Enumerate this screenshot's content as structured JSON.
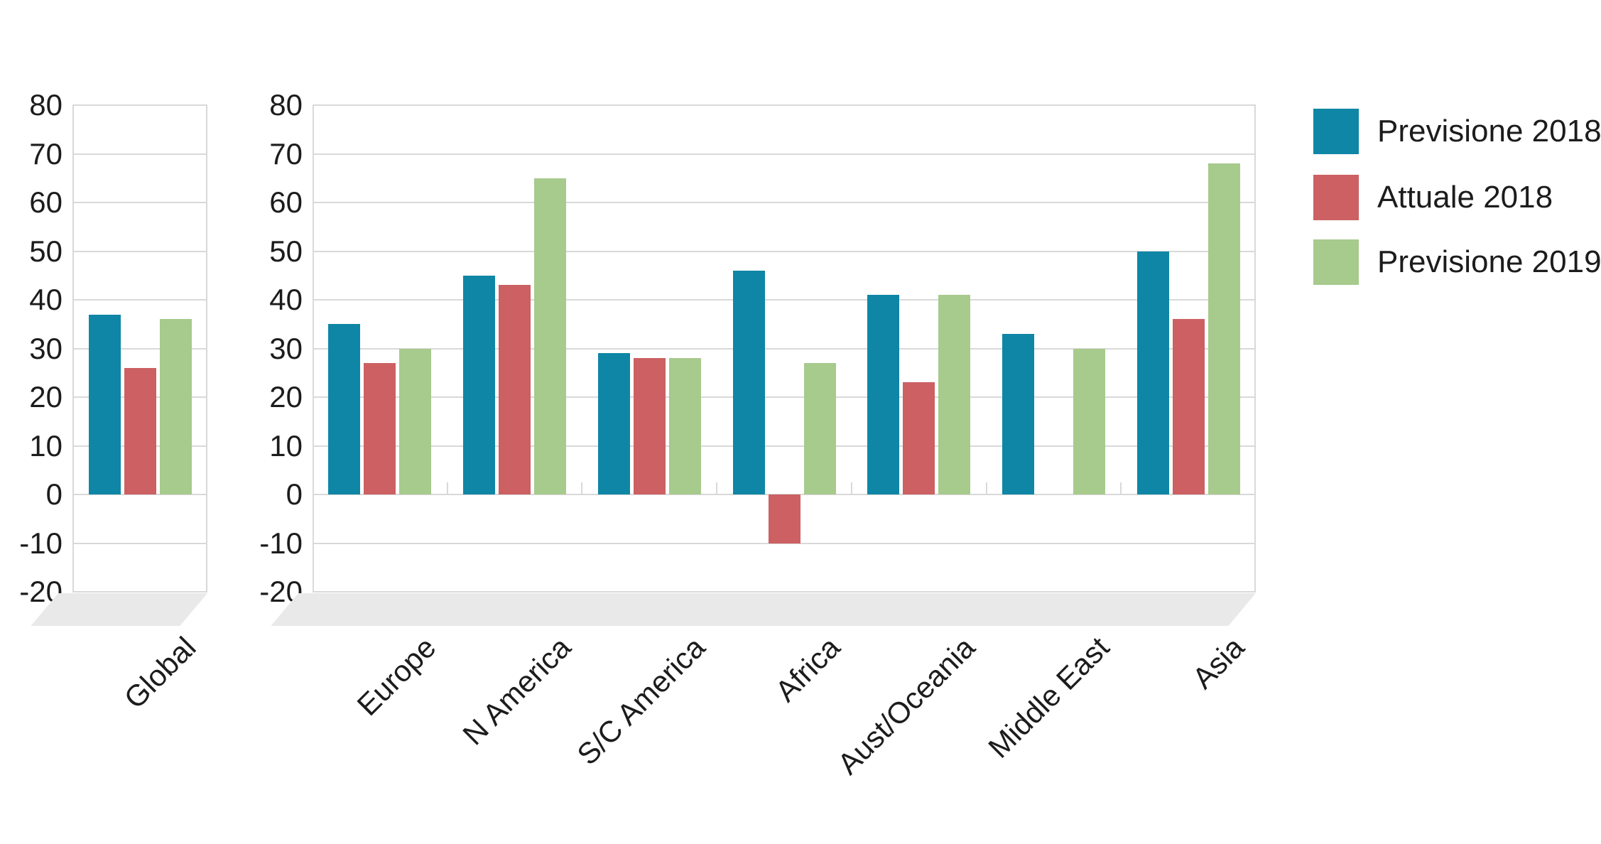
{
  "legend": {
    "items": [
      {
        "label": "Previsione 2018",
        "color": "#0f86a5"
      },
      {
        "label": "Attuale 2018",
        "color": "#cc6063"
      },
      {
        "label": "Previsione 2019",
        "color": "#a7ca8d"
      }
    ]
  },
  "y_axis": {
    "min": -20,
    "max": 80,
    "step": 10
  },
  "chart_data": {
    "type": "bar",
    "title": "",
    "xlabel": "",
    "ylabel": "",
    "ylim": [
      -20,
      80
    ],
    "grid": true,
    "legend_position": "right",
    "series_names": [
      "Previsione 2018",
      "Attuale 2018",
      "Previsione 2019"
    ],
    "series_colors": [
      "#0f86a5",
      "#cc6063",
      "#a7ca8d"
    ],
    "panels": [
      {
        "name": "global",
        "categories": [
          "Global"
        ],
        "series": [
          {
            "name": "Previsione 2018",
            "values": [
              37
            ]
          },
          {
            "name": "Attuale 2018",
            "values": [
              26
            ]
          },
          {
            "name": "Previsione 2019",
            "values": [
              36
            ]
          }
        ]
      },
      {
        "name": "regions",
        "categories": [
          "Europe",
          "N America",
          "S/C America",
          "Africa",
          "Aust/Oceania",
          "Middle East",
          "Asia"
        ],
        "series": [
          {
            "name": "Previsione 2018",
            "values": [
              35,
              45,
              29,
              46,
              41,
              33,
              50
            ]
          },
          {
            "name": "Attuale 2018",
            "values": [
              27,
              43,
              28,
              -10,
              23,
              null,
              36
            ]
          },
          {
            "name": "Previsione 2019",
            "values": [
              30,
              65,
              28,
              27,
              41,
              30,
              68
            ]
          }
        ]
      }
    ],
    "colors": {
      "gridline": "#d9d9d9",
      "floor": "#e9e9e9",
      "text": "#1c1c1c",
      "background": "#ffffff"
    }
  }
}
